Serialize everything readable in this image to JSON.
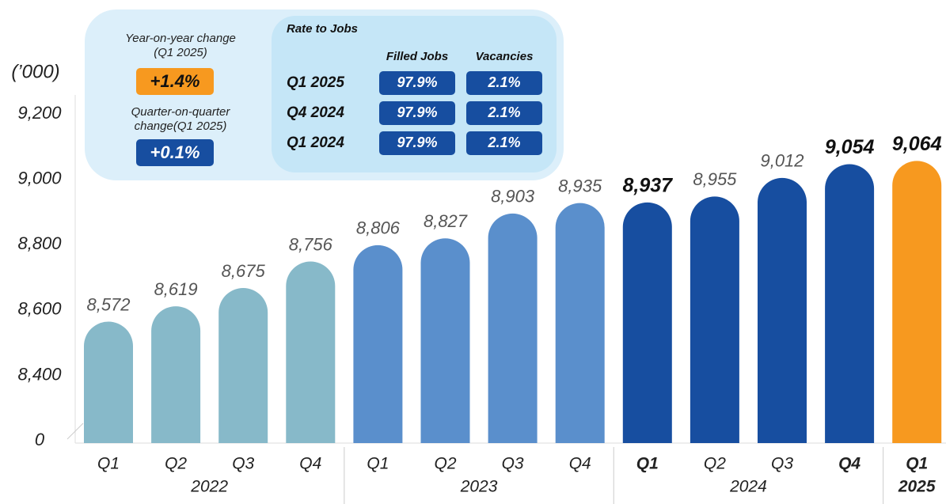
{
  "chart_data": {
    "type": "bar",
    "y_unit": "(’000)",
    "categories": [
      "Q1",
      "Q2",
      "Q3",
      "Q4",
      "Q1",
      "Q2",
      "Q3",
      "Q4",
      "Q1",
      "Q2",
      "Q3",
      "Q4",
      "Q1"
    ],
    "groups": [
      {
        "label": "2022",
        "span": 4,
        "color": "#87b9c9"
      },
      {
        "label": "2023",
        "span": 4,
        "color": "#5a8fcc"
      },
      {
        "label": "2024",
        "span": 4,
        "color": "#174ea0"
      },
      {
        "label": "2025",
        "span": 1,
        "color": "#f7991f"
      }
    ],
    "values": [
      8572,
      8619,
      8675,
      8756,
      8806,
      8827,
      8903,
      8935,
      8937,
      8955,
      9012,
      9054,
      9064
    ],
    "value_labels": [
      "8,572",
      "8,619",
      "8,675",
      "8,756",
      "8,806",
      "8,827",
      "8,903",
      "8,935",
      "8,937",
      "8,955",
      "9,012",
      "9,054",
      "9,064"
    ],
    "bold": [
      8,
      11,
      12
    ],
    "ylim": [
      0,
      9300
    ],
    "axis_break": [
      0,
      8200
    ],
    "yticks": [
      0,
      {
        "value": 8400,
        "label": "8,400"
      },
      {
        "value": 8600,
        "label": "8,600"
      },
      {
        "value": 8800,
        "label": "8,800"
      },
      {
        "value": 9000,
        "label": "9,000"
      },
      {
        "value": 9200,
        "label": "9,200"
      }
    ],
    "panel": {
      "yoy_title": "Year-on-year change",
      "yoy_sub": "(Q1 2025)",
      "yoy_value": "+1.4%",
      "qoq_title": "Quarter-on-quarter",
      "qoq_sub": "change(Q1 2025)",
      "qoq_value": "+0.1%",
      "table_title": "Rate to Jobs",
      "columns": [
        "Filled Jobs",
        "Vacancies"
      ],
      "rows": [
        {
          "label": "Q1 2025",
          "values": [
            "97.9%",
            "2.1%"
          ]
        },
        {
          "label": "Q4 2024",
          "values": [
            "97.9%",
            "2.1%"
          ]
        },
        {
          "label": "Q1 2024",
          "values": [
            "97.9%",
            "2.1%"
          ]
        }
      ]
    }
  }
}
